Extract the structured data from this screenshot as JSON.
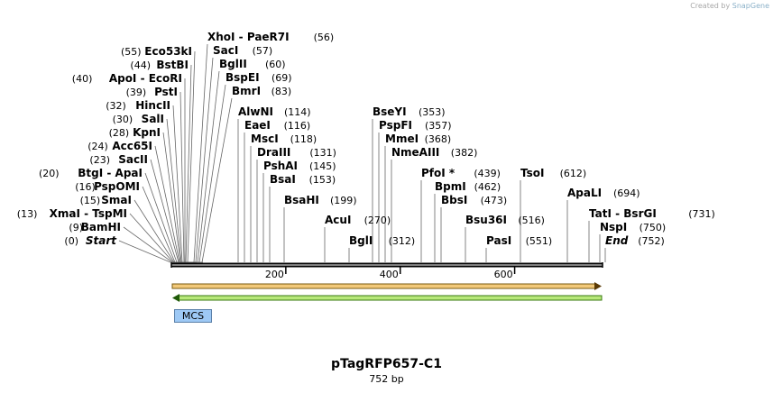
{
  "app": {
    "credit_prefix": "Created by",
    "credit_brand": "SnapGene"
  },
  "plasmid": {
    "name": "pTagRFP657-C1",
    "length_label": "752 bp",
    "length": 752
  },
  "features": [
    {
      "label": "MCS"
    }
  ],
  "axis": {
    "ticks": [
      {
        "pos": 200,
        "label": "200"
      },
      {
        "pos": 400,
        "label": "400"
      },
      {
        "pos": 600,
        "label": "600"
      }
    ]
  },
  "enzymes": [
    {
      "name": "Start",
      "pos": 0,
      "pos_label": "(0)",
      "italic": true
    },
    {
      "name": "BamHI",
      "pos": 9,
      "pos_label": "(9)"
    },
    {
      "name": "XmaI  - TspMI",
      "pos": 13,
      "pos_label": "(13)"
    },
    {
      "name": "SmaI",
      "pos": 15,
      "pos_label": "(15)"
    },
    {
      "name": "PspOMI",
      "pos": 16,
      "pos_label": "(16)"
    },
    {
      "name": "BtgI  - ApaI",
      "pos": 20,
      "pos_label": "(20)"
    },
    {
      "name": "SacII",
      "pos": 23,
      "pos_label": "(23)"
    },
    {
      "name": "Acc65I",
      "pos": 24,
      "pos_label": "(24)"
    },
    {
      "name": "KpnI",
      "pos": 28,
      "pos_label": "(28)"
    },
    {
      "name": "SalI",
      "pos": 30,
      "pos_label": "(30)"
    },
    {
      "name": "HincII",
      "pos": 32,
      "pos_label": "(32)"
    },
    {
      "name": "PstI",
      "pos": 39,
      "pos_label": "(39)"
    },
    {
      "name": "ApoI  - EcoRI",
      "pos": 40,
      "pos_label": "(40)"
    },
    {
      "name": "BstBI",
      "pos": 44,
      "pos_label": "(44)"
    },
    {
      "name": "Eco53kI",
      "pos": 55,
      "pos_label": "(55)"
    },
    {
      "name": "XhoI  - PaeR7I",
      "pos": 56,
      "pos_label": "(56)"
    },
    {
      "name": "SacI",
      "pos": 57,
      "pos_label": "(57)"
    },
    {
      "name": "BglII",
      "pos": 60,
      "pos_label": "(60)"
    },
    {
      "name": "BspEI",
      "pos": 69,
      "pos_label": "(69)"
    },
    {
      "name": "BmrI",
      "pos": 83,
      "pos_label": "(83)"
    },
    {
      "name": "AlwNI",
      "pos": 114,
      "pos_label": "(114)"
    },
    {
      "name": "EaeI",
      "pos": 116,
      "pos_label": "(116)"
    },
    {
      "name": "MscI",
      "pos": 118,
      "pos_label": "(118)"
    },
    {
      "name": "DraIII",
      "pos": 131,
      "pos_label": "(131)"
    },
    {
      "name": "PshAI",
      "pos": 145,
      "pos_label": "(145)"
    },
    {
      "name": "BsaI",
      "pos": 153,
      "pos_label": "(153)"
    },
    {
      "name": "BsaHI",
      "pos": 199,
      "pos_label": "(199)"
    },
    {
      "name": "AcuI",
      "pos": 270,
      "pos_label": "(270)"
    },
    {
      "name": "BglI",
      "pos": 312,
      "pos_label": "(312)"
    },
    {
      "name": "BseYI",
      "pos": 353,
      "pos_label": "(353)"
    },
    {
      "name": "PspFI",
      "pos": 357,
      "pos_label": "(357)"
    },
    {
      "name": "MmeI",
      "pos": 368,
      "pos_label": "(368)"
    },
    {
      "name": "NmeAIII",
      "pos": 382,
      "pos_label": "(382)"
    },
    {
      "name": "PfoI *",
      "pos": 439,
      "pos_label": "(439)"
    },
    {
      "name": "BpmI",
      "pos": 462,
      "pos_label": "(462)"
    },
    {
      "name": "BbsI",
      "pos": 473,
      "pos_label": "(473)"
    },
    {
      "name": "Bsu36I",
      "pos": 516,
      "pos_label": "(516)"
    },
    {
      "name": "PasI",
      "pos": 551,
      "pos_label": "(551)"
    },
    {
      "name": "TsoI",
      "pos": 612,
      "pos_label": "(612)"
    },
    {
      "name": "ApaLI",
      "pos": 694,
      "pos_label": "(694)"
    },
    {
      "name": "TatI  - BsrGI",
      "pos": 731,
      "pos_label": "(731)"
    },
    {
      "name": "NspI",
      "pos": 750,
      "pos_label": "(750)"
    },
    {
      "name": "End",
      "pos": 752,
      "pos_label": "(752)",
      "italic": true
    }
  ],
  "colors": {
    "forward_arrow": "#f2c97a",
    "forward_outline": "#7a5a10",
    "reverse_arrow": "#b7e87a",
    "reverse_outline": "#3a7a12",
    "feature_fill": "#9ec9f5"
  }
}
